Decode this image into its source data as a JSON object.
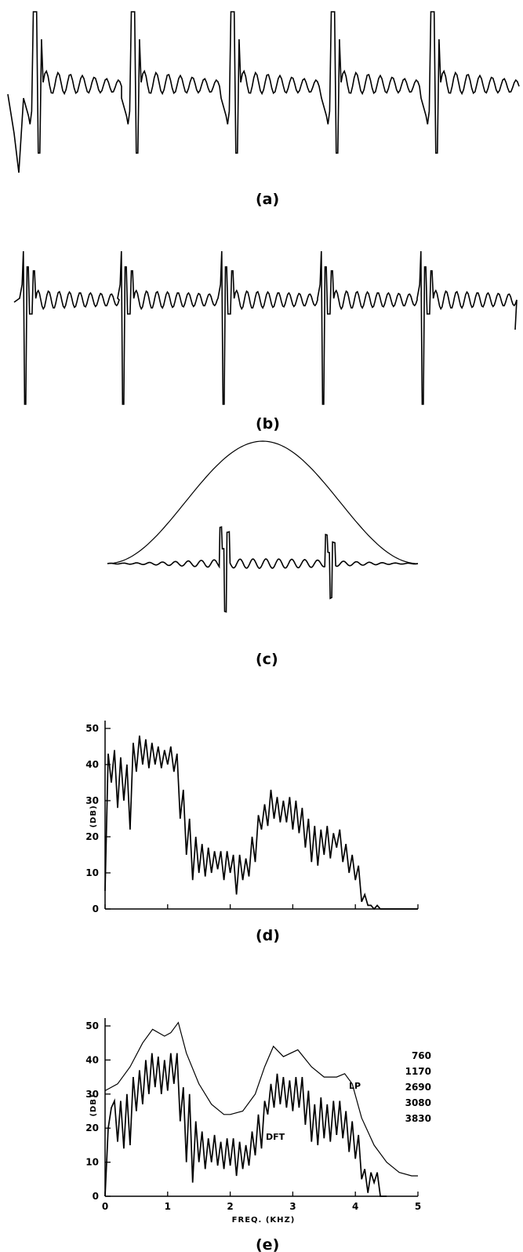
{
  "panels": {
    "a": {
      "label": "(a)"
    },
    "b": {
      "label": "(b)"
    },
    "c": {
      "label": "(c)"
    },
    "d": {
      "label": "(d)"
    },
    "e": {
      "label": "(e)"
    }
  },
  "chart_data": [
    {
      "type": "line",
      "panel": "(a)",
      "title": "",
      "series": [
        {
          "name": "",
          "description_period_count": 5
        }
      ],
      "grid": false
    },
    {
      "type": "line",
      "panel": "(b)",
      "title": "",
      "series": [
        {
          "name": "",
          "description_period_count": 5
        }
      ],
      "grid": false
    },
    {
      "type": "line",
      "panel": "(c)",
      "title": "",
      "series": [
        {
          "name": ""
        },
        {
          "name": ""
        }
      ],
      "grid": false
    },
    {
      "type": "line",
      "panel": "(d)",
      "ylabel": "(DB)",
      "xlabel": "",
      "xlim": [
        0,
        5
      ],
      "ylim": [
        0,
        50
      ],
      "y_ticks": [
        "0",
        "10",
        "20",
        "30",
        "40",
        "50"
      ],
      "series": [
        {
          "name": "",
          "x": [
            0.0,
            0.05,
            0.1,
            0.15,
            0.2,
            0.25,
            0.3,
            0.35,
            0.4,
            0.45,
            0.5,
            0.55,
            0.6,
            0.65,
            0.7,
            0.75,
            0.8,
            0.85,
            0.9,
            0.95,
            1.0,
            1.05,
            1.1,
            1.15,
            1.2,
            1.25,
            1.3,
            1.35,
            1.4,
            1.45,
            1.5,
            1.55,
            1.6,
            1.65,
            1.7,
            1.75,
            1.8,
            1.85,
            1.9,
            1.95,
            2.0,
            2.05,
            2.1,
            2.15,
            2.2,
            2.25,
            2.3,
            2.35,
            2.4,
            2.45,
            2.5,
            2.55,
            2.6,
            2.65,
            2.7,
            2.75,
            2.8,
            2.85,
            2.9,
            2.95,
            3.0,
            3.05,
            3.1,
            3.15,
            3.2,
            3.25,
            3.3,
            3.35,
            3.4,
            3.45,
            3.5,
            3.55,
            3.6,
            3.65,
            3.7,
            3.75,
            3.8,
            3.85,
            3.9,
            3.95,
            4.0,
            4.05,
            4.1,
            4.15,
            4.2,
            4.25,
            4.3,
            4.35,
            4.4,
            4.45,
            4.5,
            4.55,
            4.6,
            4.65,
            4.7,
            4.75,
            4.8,
            4.85,
            4.9,
            4.95,
            5.0
          ],
          "y": [
            5,
            43,
            35,
            44,
            28,
            42,
            30,
            40,
            22,
            46,
            38,
            48,
            40,
            47,
            39,
            46,
            40,
            45,
            39,
            44,
            40,
            45,
            38,
            43,
            25,
            33,
            15,
            25,
            8,
            20,
            10,
            18,
            9,
            17,
            10,
            16,
            11,
            16,
            8,
            16,
            10,
            15,
            4,
            15,
            8,
            14,
            9,
            20,
            13,
            26,
            22,
            29,
            23,
            33,
            25,
            31,
            24,
            30,
            24,
            31,
            22,
            30,
            21,
            28,
            17,
            25,
            13,
            23,
            12,
            22,
            15,
            23,
            14,
            21,
            17,
            22,
            13,
            18,
            10,
            15,
            8,
            12,
            2,
            4,
            1,
            1,
            0,
            1,
            0,
            0,
            0,
            0,
            0,
            0,
            0,
            0,
            0,
            0,
            0,
            0,
            0
          ]
        }
      ],
      "grid": false
    },
    {
      "type": "line",
      "panel": "(e)",
      "xlabel": "FREQ. (KHZ)",
      "ylabel": "(DB)",
      "xlim": [
        0,
        5
      ],
      "ylim": [
        0,
        50
      ],
      "x_ticks": [
        "0",
        "1",
        "2",
        "3",
        "4",
        "5"
      ],
      "y_ticks": [
        "0",
        "10",
        "20",
        "30",
        "40",
        "50"
      ],
      "annotations": [
        "LP",
        "DFT"
      ],
      "formants": [
        "760",
        "1170",
        "2690",
        "3080",
        "3830"
      ],
      "series": [
        {
          "name": "LP",
          "x": [
            0,
            0.2,
            0.4,
            0.6,
            0.76,
            0.95,
            1.05,
            1.17,
            1.3,
            1.5,
            1.7,
            1.9,
            2.0,
            2.2,
            2.4,
            2.55,
            2.69,
            2.85,
            3.08,
            3.3,
            3.5,
            3.7,
            3.83,
            3.95,
            4.1,
            4.3,
            4.5,
            4.7,
            4.9,
            5.0
          ],
          "y": [
            31,
            33,
            38,
            45,
            49,
            47,
            48,
            51,
            42,
            33,
            27,
            24,
            24,
            25,
            30,
            38,
            44,
            41,
            43,
            38,
            35,
            35,
            36,
            33,
            23,
            15,
            10,
            7,
            6,
            6
          ]
        },
        {
          "name": "DFT",
          "x": [
            0.0,
            0.05,
            0.1,
            0.15,
            0.2,
            0.25,
            0.3,
            0.35,
            0.4,
            0.45,
            0.5,
            0.55,
            0.6,
            0.65,
            0.7,
            0.75,
            0.8,
            0.85,
            0.9,
            0.95,
            1.0,
            1.05,
            1.1,
            1.15,
            1.2,
            1.25,
            1.3,
            1.35,
            1.4,
            1.45,
            1.5,
            1.55,
            1.6,
            1.65,
            1.7,
            1.75,
            1.8,
            1.85,
            1.9,
            1.95,
            2.0,
            2.05,
            2.1,
            2.15,
            2.2,
            2.25,
            2.3,
            2.35,
            2.4,
            2.45,
            2.5,
            2.55,
            2.6,
            2.65,
            2.7,
            2.75,
            2.8,
            2.85,
            2.9,
            2.95,
            3.0,
            3.05,
            3.1,
            3.15,
            3.2,
            3.25,
            3.3,
            3.35,
            3.4,
            3.45,
            3.5,
            3.55,
            3.6,
            3.65,
            3.7,
            3.75,
            3.8,
            3.85,
            3.9,
            3.95,
            4.0,
            4.05,
            4.1,
            4.15,
            4.2,
            4.25,
            4.3,
            4.35,
            4.4,
            4.45,
            4.5
          ],
          "y": [
            0,
            20,
            26,
            28,
            16,
            28,
            14,
            30,
            15,
            35,
            25,
            37,
            27,
            40,
            30,
            42,
            32,
            41,
            30,
            40,
            31,
            42,
            33,
            42,
            22,
            32,
            10,
            30,
            4,
            22,
            10,
            19,
            8,
            17,
            10,
            18,
            9,
            16,
            8,
            17,
            9,
            17,
            6,
            16,
            8,
            15,
            9,
            19,
            12,
            24,
            14,
            28,
            24,
            33,
            26,
            36,
            27,
            35,
            26,
            34,
            25,
            35,
            26,
            35,
            21,
            31,
            16,
            27,
            15,
            29,
            17,
            27,
            16,
            28,
            18,
            28,
            17,
            25,
            13,
            22,
            11,
            18,
            5,
            8,
            1,
            7,
            4,
            7,
            0,
            0,
            0
          ]
        }
      ],
      "grid": false
    }
  ]
}
